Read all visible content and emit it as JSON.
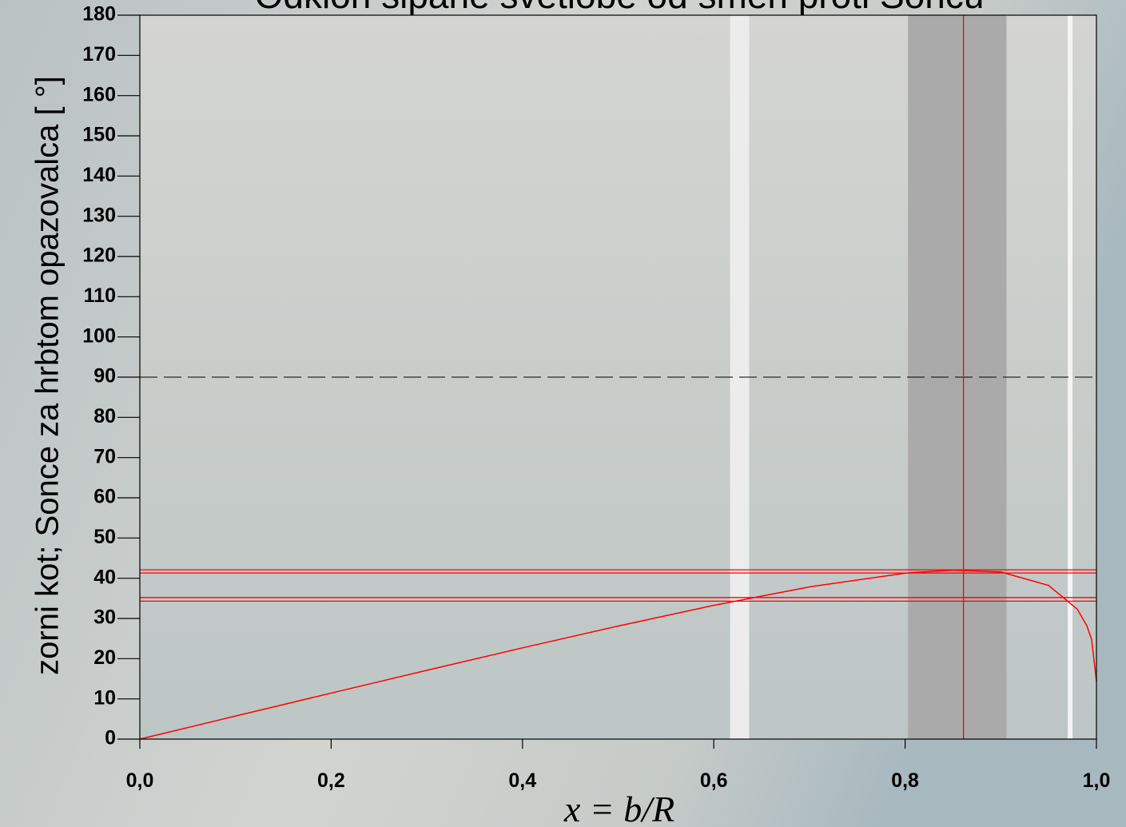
{
  "chart_data": {
    "type": "line",
    "title": "Odklon sipane svetlobe od smeri proti Soncu",
    "x_label": "x = b/R",
    "y_label": "zorni kot; Sonce za hrbtom opazovalca [ °]",
    "x": [
      0,
      0.1,
      0.2,
      0.3,
      0.4,
      0.5,
      0.6,
      0.7,
      0.8,
      0.85,
      0.9,
      0.95,
      0.98,
      0.99,
      0.995,
      1.0
    ],
    "series": [
      {
        "color": "#ff0000",
        "values": [
          0,
          5.73,
          11.44,
          17.11,
          22.69,
          28.12,
          33.26,
          37.85,
          41.26,
          42.03,
          41.56,
          38.22,
          32.3,
          28.17,
          24.74,
          14.4
        ]
      }
    ],
    "xlim": [
      0,
      1
    ],
    "ylim": [
      0,
      180
    ],
    "xticks": [
      {
        "value": 0,
        "label": "0,0"
      },
      {
        "value": 0.2,
        "label": "0,2"
      },
      {
        "value": 0.4,
        "label": "0,4"
      },
      {
        "value": 0.6,
        "label": "0,6"
      },
      {
        "value": 0.8,
        "label": "0,8"
      },
      {
        "value": 1,
        "label": "1,0"
      }
    ],
    "yticks": [
      0,
      10,
      20,
      30,
      40,
      50,
      60,
      70,
      80,
      90,
      100,
      110,
      120,
      130,
      140,
      150,
      160,
      170,
      180
    ],
    "bands": [
      {
        "x": [
          0.617,
          0.637
        ],
        "color": "#ececec"
      },
      {
        "x": [
          0.803,
          0.906
        ],
        "color": "#aaaaaa"
      },
      {
        "x": [
          0.97,
          0.975
        ],
        "color": "#f4f4f4"
      }
    ],
    "hlines": [
      42.1,
      41.3,
      35.2,
      34.3
    ],
    "vline": 0.861,
    "dashed_hline": 90
  }
}
